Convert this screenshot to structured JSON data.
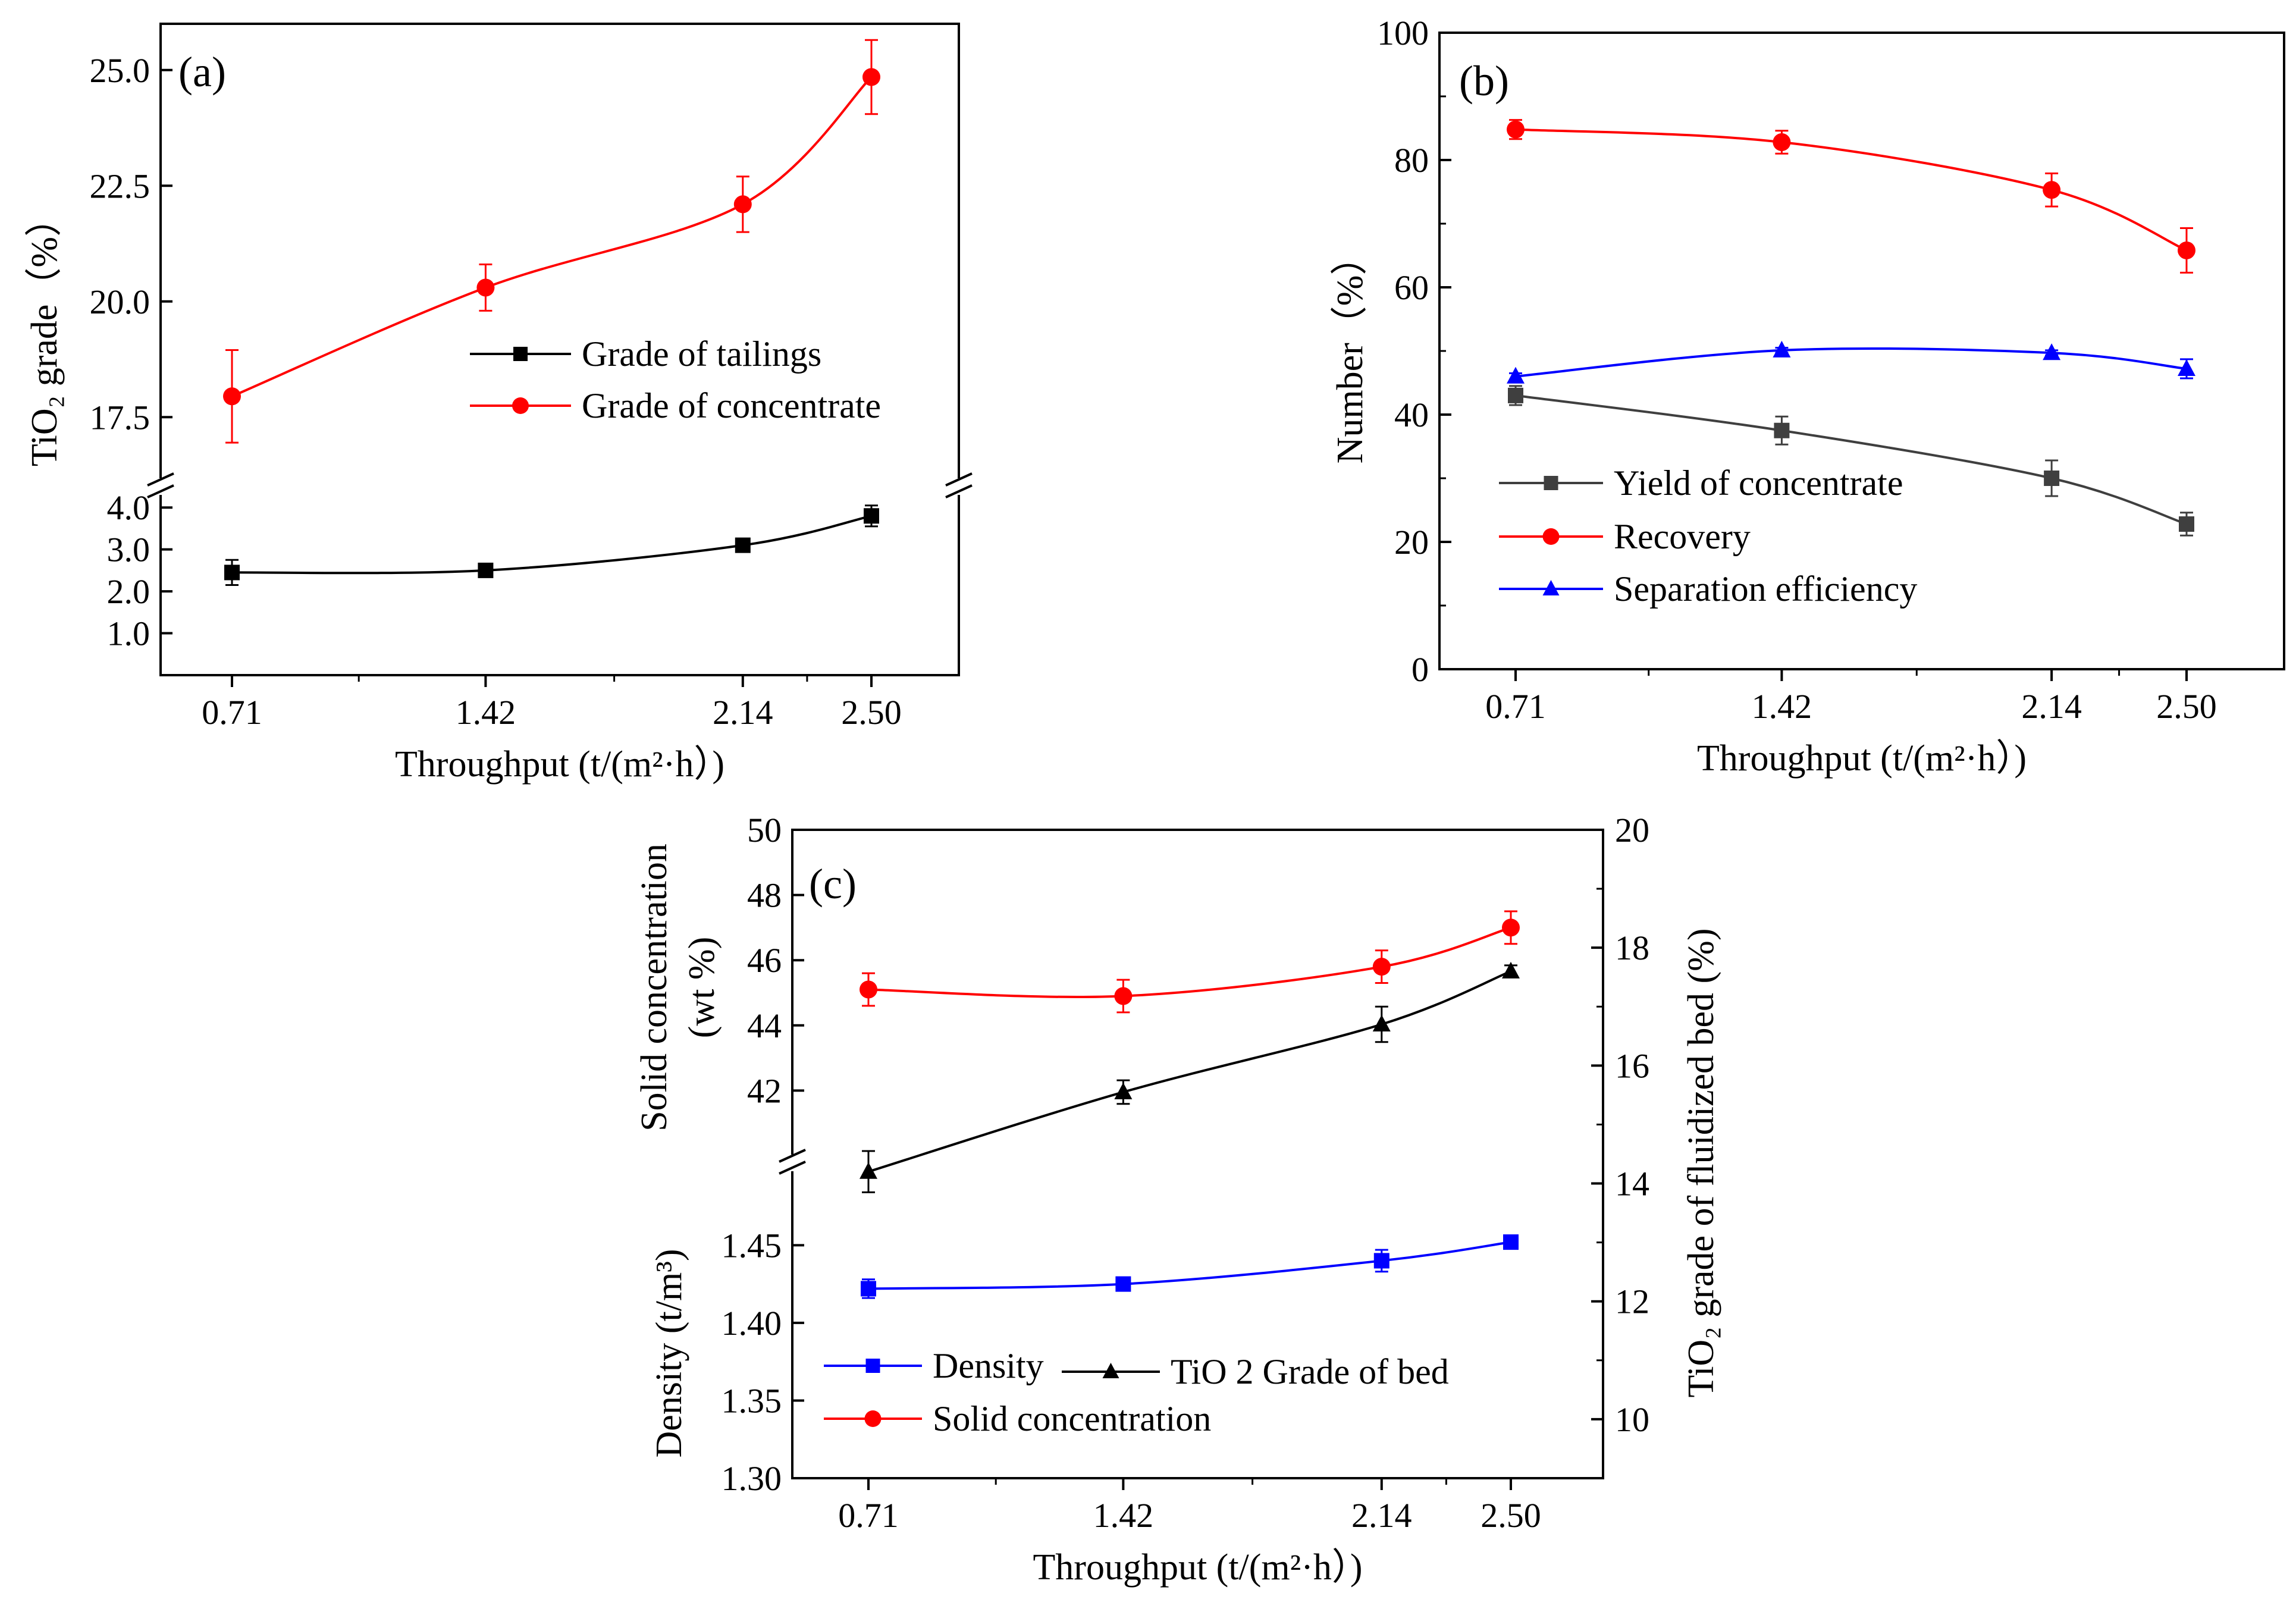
{
  "chart_data": [
    {
      "panel": "(a)",
      "type": "line",
      "categories": [
        "0.71",
        "1.42",
        "2.14",
        "2.50"
      ],
      "x": [
        0.71,
        1.42,
        2.14,
        2.5
      ],
      "xlabel": "Throughput (t/(m²·h）)",
      "ylabel": "TiO₂ grade（%）",
      "broken_axis": true,
      "y_upper": {
        "range": [
          16.0,
          26.0
        ],
        "ticks": [
          "17.5",
          "20.0",
          "22.5",
          "25.0"
        ]
      },
      "y_lower": {
        "range": [
          0.0,
          4.5
        ],
        "ticks": [
          "1.0",
          "2.0",
          "3.0",
          "4.0"
        ]
      },
      "legend_position": "center-right",
      "series": [
        {
          "name": "Grade of tailings",
          "color": "#000000",
          "marker": "square",
          "axis": "lower",
          "values": [
            2.45,
            2.5,
            3.1,
            3.8
          ],
          "errors": [
            0.3,
            0.08,
            0.1,
            0.25
          ]
        },
        {
          "name": "Grade of concentrate",
          "color": "#ff0000",
          "marker": "circle",
          "axis": "upper",
          "values": [
            17.95,
            20.3,
            22.1,
            24.85
          ],
          "errors": [
            1.0,
            0.5,
            0.6,
            0.8
          ]
        }
      ]
    },
    {
      "panel": "(b)",
      "type": "line",
      "categories": [
        "0.71",
        "1.42",
        "2.14",
        "2.50"
      ],
      "x": [
        0.71,
        1.42,
        2.14,
        2.5
      ],
      "xlabel": "Throughput (t/(m²·h）)",
      "ylabel": "Number（%）",
      "ylim": [
        0,
        100
      ],
      "yticks": [
        "0",
        "20",
        "40",
        "60",
        "80",
        "100"
      ],
      "legend_position": "lower-left",
      "series": [
        {
          "name": "Yield of concentrate",
          "color": "#3f3f3f",
          "marker": "square",
          "values": [
            43.0,
            37.5,
            30.0,
            22.8
          ],
          "errors": [
            1.5,
            2.2,
            2.8,
            1.8
          ]
        },
        {
          "name": "Recovery",
          "color": "#ff0000",
          "marker": "circle",
          "values": [
            84.8,
            82.8,
            75.3,
            65.8
          ],
          "errors": [
            1.5,
            1.8,
            2.6,
            3.5
          ]
        },
        {
          "name": "Separation efficiency",
          "color": "#0000ff",
          "marker": "triangle",
          "values": [
            46.0,
            50.1,
            49.7,
            47.2
          ],
          "errors": [
            0.5,
            0.4,
            0.4,
            1.5
          ]
        }
      ]
    },
    {
      "panel": "(c)",
      "type": "line",
      "categories": [
        "0.71",
        "1.42",
        "2.14",
        "2.50"
      ],
      "x": [
        0.71,
        1.42,
        2.14,
        2.5
      ],
      "xlabel": "Throughput (t/(m²·h）)",
      "ylabel_left_upper": "Solid concentration",
      "ylabel_left_upper_unit": "(wt %)",
      "ylabel_left_lower": "Density (t/m³)",
      "ylabel_right": "TiO₂ grade of fluidized bed (%)",
      "broken_axis": true,
      "y_left_upper": {
        "range": [
          40.0,
          50.0
        ],
        "ticks": [
          "42",
          "44",
          "46",
          "48",
          "50"
        ]
      },
      "y_left_lower": {
        "range": [
          1.3,
          1.48
        ],
        "ticks": [
          "1.30",
          "1.35",
          "1.40",
          "1.45"
        ]
      },
      "y_right": {
        "range": [
          9.0,
          20.0
        ],
        "ticks": [
          "10",
          "12",
          "14",
          "16",
          "18",
          "20"
        ]
      },
      "legend_position": "bottom-left",
      "series": [
        {
          "name": "Density",
          "color": "#0000ff",
          "marker": "square",
          "axis": "left_lower",
          "values": [
            1.422,
            1.425,
            1.44,
            1.452
          ],
          "errors": [
            0.006,
            0.002,
            0.007,
            0.002
          ]
        },
        {
          "name": "TiO 2 Grade of bed",
          "color": "#000000",
          "marker": "triangle",
          "axis": "right",
          "values": [
            14.2,
            15.55,
            16.7,
            17.6
          ],
          "errors": [
            0.35,
            0.2,
            0.3,
            0.1
          ]
        },
        {
          "name": "Solid concentration",
          "color": "#ff0000",
          "marker": "circle",
          "axis": "left_upper",
          "values": [
            45.1,
            44.9,
            45.8,
            47.0
          ],
          "errors": [
            0.5,
            0.5,
            0.5,
            0.5
          ]
        }
      ]
    }
  ]
}
